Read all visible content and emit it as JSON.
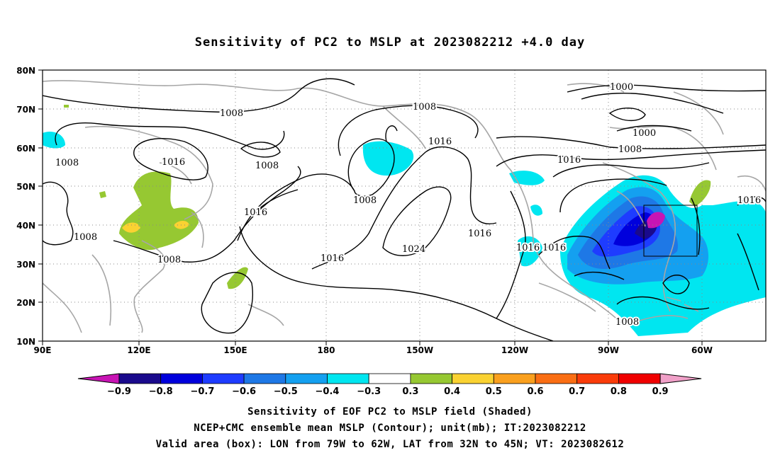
{
  "title": "Sensitivity of PC2 to MSLP at 2023082212 +4.0 day",
  "lat_labels": [
    "80N",
    "70N",
    "60N",
    "50N",
    "40N",
    "30N",
    "20N",
    "10N"
  ],
  "lon_labels": [
    "90E",
    "120E",
    "150E",
    "180",
    "150W",
    "120W",
    "90W",
    "60W"
  ],
  "contour_labels": [
    "1008",
    "1016",
    "1008",
    "1016",
    "1008",
    "1008",
    "1008",
    "1016",
    "1008",
    "1016",
    "1024",
    "1016",
    "1008",
    "1016",
    "1000",
    "1000",
    "1008",
    "1016",
    "1016",
    "1008"
  ],
  "colorbar": {
    "labels": [
      "−0.9",
      "−0.8",
      "−0.7",
      "−0.6",
      "−0.5",
      "−0.4",
      "−0.3",
      "0.3",
      "0.4",
      "0.5",
      "0.6",
      "0.7",
      "0.8",
      "0.9"
    ],
    "colors": [
      "#1a0a8c",
      "#0000dc",
      "#1e3cff",
      "#1e78e6",
      "#14a0f0",
      "#00e6f0",
      "#ffffff",
      "#96c832",
      "#fad232",
      "#faa01e",
      "#fa6e14",
      "#fa3c0a",
      "#f00000"
    ],
    "low_arrow_color": "#c814b4",
    "high_arrow_color": "#f0a0c8"
  },
  "captions": [
    "Sensitivity of EOF PC2 to MSLP field (Shaded)",
    "NCEP+CMC ensemble mean MSLP (Contour); unit(mb); IT:2023082212",
    "Valid area (box): LON from 79W to 62W, LAT from 32N to 45N; VT: 2023082612"
  ]
}
